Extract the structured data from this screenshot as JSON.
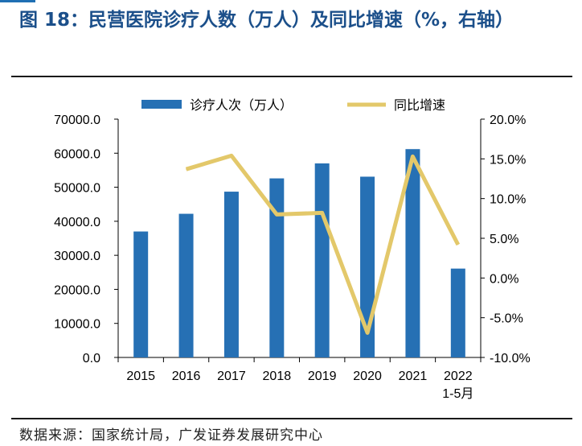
{
  "header": {
    "title": "图 18：民营医院诊疗人数（万人）及同比增速（%，右轴）"
  },
  "source": "数据来源：国家统计局，广发证券发展研究中心",
  "colors": {
    "bar": "#2670b4",
    "line": "#e3c86a",
    "title": "#1b4f8a"
  },
  "chart_data": {
    "type": "bar",
    "categories": [
      "2015",
      "2016",
      "2017",
      "2018",
      "2019",
      "2020",
      "2021",
      "2022\n1-5月"
    ],
    "series": [
      {
        "name": "诊疗人次（万人）",
        "type": "bar",
        "axis": "left",
        "values": [
          37000,
          42200,
          48700,
          52600,
          57000,
          53100,
          61200,
          26100
        ]
      },
      {
        "name": "同比增速",
        "type": "line",
        "axis": "right",
        "values": [
          null,
          13.7,
          15.4,
          8.0,
          8.2,
          -6.9,
          15.3,
          4.2
        ]
      }
    ],
    "y_left": {
      "lim": [
        0,
        70000
      ],
      "ticks": [
        "0.0",
        "10000.0",
        "20000.0",
        "30000.0",
        "40000.0",
        "50000.0",
        "60000.0",
        "70000.0"
      ]
    },
    "y_right": {
      "lim": [
        -10,
        20
      ],
      "ticks": [
        "-10.0%",
        "-5.0%",
        "0.0%",
        "5.0%",
        "10.0%",
        "15.0%",
        "20.0%"
      ]
    },
    "legend_position": "top-center",
    "grid": false
  }
}
